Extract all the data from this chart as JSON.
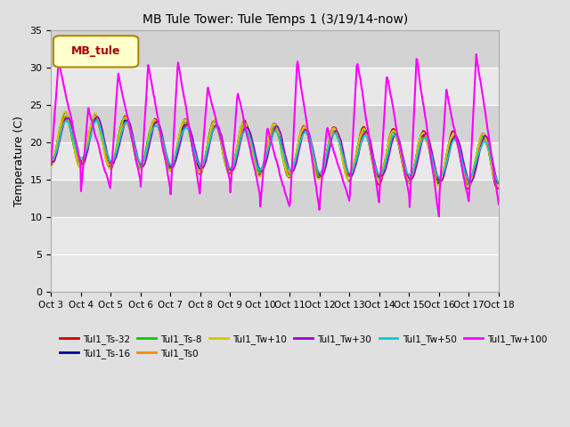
{
  "title": "MB Tule Tower: Tule Temps 1 (3/19/14-now)",
  "ylabel": "Temperature (C)",
  "xlim": [
    0,
    15
  ],
  "ylim": [
    0,
    35
  ],
  "yticks": [
    0,
    5,
    10,
    15,
    20,
    25,
    30,
    35
  ],
  "xtick_labels": [
    "Oct 3",
    "Oct 4",
    "Oct 5",
    "Oct 6",
    "Oct 7",
    "Oct 8",
    "Oct 9",
    "Oct 10",
    "Oct 11",
    "Oct 12",
    "Oct 13",
    "Oct 14",
    "Oct 15",
    "Oct 16",
    "Oct 17",
    "Oct 18"
  ],
  "legend_label": "MB_tule",
  "series_order": [
    "Tul1_Ts-32",
    "Tul1_Ts-16",
    "Tul1_Ts-8",
    "Tul1_Ts0",
    "Tul1_Tw+10",
    "Tul1_Tw+30",
    "Tul1_Tw+50",
    "Tul1_Tw+100"
  ],
  "series": {
    "Tul1_Ts-32": {
      "color": "#cc0000",
      "lw": 1.2
    },
    "Tul1_Ts-16": {
      "color": "#000099",
      "lw": 1.2
    },
    "Tul1_Ts-8": {
      "color": "#00cc00",
      "lw": 1.2
    },
    "Tul1_Ts0": {
      "color": "#ff8800",
      "lw": 1.2
    },
    "Tul1_Tw+10": {
      "color": "#cccc00",
      "lw": 1.2
    },
    "Tul1_Tw+30": {
      "color": "#9900cc",
      "lw": 1.2
    },
    "Tul1_Tw+50": {
      "color": "#00cccc",
      "lw": 1.2
    },
    "Tul1_Tw+100": {
      "color": "#ff00ff",
      "lw": 1.5
    }
  },
  "bg_color": "#e0e0e0",
  "plot_bg_color": "#d8d8d8",
  "band_colors": [
    "#d0d0d0",
    "#c8c8c8"
  ],
  "grid_color": "#ffffff"
}
